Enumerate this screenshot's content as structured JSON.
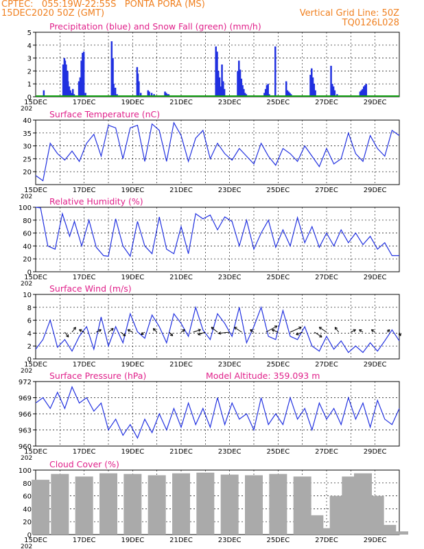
{
  "header": {
    "line1": "CPTEC:   055:19W-22:55S   PONTA PORA (MS)",
    "line2": "15DEC2020 50Z (GMT)",
    "grid_note": "Vertical Grid Line: 50Z",
    "code": "TQ0126L028"
  },
  "colors": {
    "precip": "#2030e0",
    "snow": "#10a010",
    "line": "#2030e0",
    "title": "#e0208a",
    "header": "#f08020",
    "cloud": "#aaaaaa",
    "wind_arrow": "#000000"
  },
  "x_ticks": [
    "15DEC",
    "17DEC",
    "19DEC",
    "21DEC",
    "23DEC",
    "25DEC",
    "27DEC",
    "29DEC"
  ],
  "stub_label": "202",
  "chart_data": [
    {
      "type": "bar",
      "title": "Precipitation (blue) and Snow Fall (green) (mm/h)",
      "ylim": [
        0,
        5
      ],
      "yticks": [
        "0",
        "1",
        "2",
        "3",
        "4",
        "5"
      ],
      "grid": true,
      "x_days": [
        0.3,
        0.4,
        1.1,
        1.15,
        1.18,
        1.22,
        1.28,
        1.3,
        1.35,
        1.4,
        1.45,
        1.5,
        1.55,
        1.75,
        1.8,
        1.85,
        1.9,
        1.95,
        2.02,
        2.1,
        3.1,
        3.15,
        3.18,
        3.25,
        3.32,
        4.15,
        4.18,
        4.22,
        4.3,
        4.4,
        4.6,
        4.65,
        4.75,
        4.85,
        5.3,
        5.35,
        5.4,
        5.45,
        5.5,
        5.6,
        5.8,
        7.4,
        7.45,
        7.5,
        7.55,
        7.6,
        7.65,
        7.7,
        7.75,
        8.3,
        8.35,
        8.4,
        8.45,
        8.5,
        8.55,
        8.6,
        8.65,
        9.4,
        9.45,
        9.5,
        9.55,
        9.6,
        9.85,
        10.3,
        10.35,
        10.4,
        10.45,
        10.5,
        10.55,
        11.3,
        11.35,
        11.4,
        11.45,
        11.5,
        12.15,
        12.2,
        12.25,
        12.3,
        12.4,
        13.35,
        13.4,
        13.45,
        13.5,
        13.55,
        13.6
      ],
      "values": [
        0.5,
        0.1,
        2.5,
        3.0,
        2.8,
        2.5,
        2.0,
        1.2,
        0.8,
        0.5,
        0.3,
        0.6,
        0.2,
        1.2,
        1.5,
        2.8,
        3.4,
        3.5,
        0.3,
        0.1,
        4.3,
        3.0,
        1.0,
        0.7,
        0.2,
        2.3,
        1.8,
        1.2,
        0.3,
        0.1,
        0.5,
        0.4,
        0.3,
        0.2,
        0.4,
        0.3,
        0.2,
        0.2,
        0.1,
        0.1,
        0.1,
        3.9,
        3.5,
        2.0,
        1.5,
        0.8,
        2.5,
        1.2,
        0.6,
        2.0,
        2.8,
        2.1,
        1.4,
        0.9,
        0.6,
        0.3,
        0.2,
        0.3,
        0.6,
        0.9,
        1.0,
        0.2,
        3.9,
        1.2,
        0.5,
        0.4,
        0.3,
        0.2,
        0.1,
        1.7,
        2.2,
        1.5,
        1.0,
        0.5,
        2.4,
        1.0,
        0.8,
        0.5,
        0.2,
        0.4,
        0.5,
        0.6,
        0.8,
        0.9,
        1.0
      ],
      "snow": 0
    },
    {
      "type": "line",
      "title": "Surface Temperature (nC)",
      "ylim": [
        15,
        40
      ],
      "yticks": [
        "20",
        "25",
        "30",
        "35",
        "40"
      ],
      "grid": true,
      "x_days": [
        0,
        0.3,
        0.6,
        0.9,
        1.2,
        1.5,
        1.8,
        2.1,
        2.4,
        2.7,
        3.0,
        3.3,
        3.6,
        3.9,
        4.2,
        4.5,
        4.8,
        5.1,
        5.4,
        5.7,
        6.0,
        6.3,
        6.6,
        6.9,
        7.2,
        7.5,
        7.8,
        8.1,
        8.4,
        8.7,
        9.0,
        9.3,
        9.6,
        9.9,
        10.2,
        10.5,
        10.8,
        11.1,
        11.4,
        11.7,
        12.0,
        12.3,
        12.6,
        12.9,
        13.2,
        13.5,
        13.8,
        14.1,
        14.4,
        14.7,
        15.0
      ],
      "values": [
        18.5,
        16.5,
        31,
        27,
        24.5,
        28,
        24,
        31,
        34.5,
        26,
        38,
        37,
        25,
        37,
        38,
        24,
        38.5,
        36,
        24,
        39,
        34,
        24,
        33,
        36,
        25,
        31,
        27,
        24.5,
        29,
        26,
        23,
        31,
        26,
        22.5,
        29,
        27,
        24,
        30,
        26,
        22,
        29,
        23,
        25,
        35,
        27,
        24,
        34,
        29,
        26,
        36,
        34
      ]
    },
    {
      "type": "line",
      "title": "Relative Humidity (%)",
      "ylim": [
        0,
        100
      ],
      "yticks": [
        "0",
        "20",
        "40",
        "60",
        "80",
        "100"
      ],
      "grid": true,
      "x_days": [
        0,
        0.2,
        0.5,
        0.8,
        1.1,
        1.4,
        1.6,
        1.9,
        2.2,
        2.5,
        2.8,
        3.0,
        3.3,
        3.6,
        3.9,
        4.2,
        4.5,
        4.8,
        5.1,
        5.4,
        5.7,
        6.0,
        6.3,
        6.6,
        6.9,
        7.2,
        7.5,
        7.8,
        8.1,
        8.4,
        8.7,
        9.0,
        9.3,
        9.6,
        9.9,
        10.2,
        10.5,
        10.8,
        11.1,
        11.4,
        11.7,
        12.0,
        12.3,
        12.6,
        12.9,
        13.2,
        13.5,
        13.8,
        14.1,
        14.4,
        14.7,
        15.0
      ],
      "values": [
        100,
        99,
        40,
        35,
        90,
        55,
        78,
        40,
        80,
        38,
        25,
        24,
        82,
        40,
        24,
        78,
        40,
        28,
        85,
        35,
        28,
        70,
        28,
        90,
        82,
        88,
        65,
        85,
        78,
        40,
        80,
        35,
        60,
        80,
        38,
        65,
        40,
        84,
        45,
        70,
        38,
        60,
        40,
        65,
        45,
        60,
        42,
        55,
        35,
        45,
        25,
        25
      ]
    },
    {
      "type": "line",
      "title": "Surface Wind (m/s)",
      "ylim": [
        0,
        10
      ],
      "yticks": [
        "0",
        "2",
        "4",
        "6",
        "8",
        "10"
      ],
      "grid": true,
      "x_days": [
        0,
        0.3,
        0.6,
        0.9,
        1.2,
        1.5,
        1.8,
        2.1,
        2.4,
        2.7,
        3.0,
        3.3,
        3.6,
        3.9,
        4.2,
        4.5,
        4.8,
        5.1,
        5.4,
        5.7,
        6.0,
        6.3,
        6.6,
        6.9,
        7.2,
        7.5,
        7.8,
        8.1,
        8.4,
        8.7,
        9.0,
        9.3,
        9.6,
        9.9,
        10.2,
        10.5,
        10.8,
        11.1,
        11.4,
        11.7,
        12.0,
        12.3,
        12.6,
        12.9,
        13.2,
        13.5,
        13.8,
        14.1,
        14.4,
        14.7,
        15.0
      ],
      "values": [
        1.5,
        3,
        6,
        1.8,
        3,
        1.2,
        3.5,
        5,
        1.5,
        6.5,
        2,
        5,
        2.5,
        7,
        4.2,
        3.2,
        6.8,
        5,
        2.5,
        7,
        5.5,
        3.5,
        8,
        4.5,
        3,
        7,
        5.5,
        3.5,
        8,
        2.5,
        5,
        8,
        3.5,
        3,
        7.5,
        3.5,
        3,
        5,
        2,
        1.2,
        3.5,
        1.5,
        2.8,
        1,
        2,
        1,
        2.5,
        1.2,
        2.8,
        4.5,
        2.8
      ],
      "arrow_days": [
        1.2,
        1.5,
        2.0,
        2.5,
        3.0,
        3.5,
        4.0,
        4.5,
        5.0,
        5.5,
        6.0,
        6.5,
        7.0,
        7.5,
        8.0,
        8.5,
        9.0,
        9.5,
        10.0,
        10.5,
        11.0,
        11.5,
        12.0,
        12.5,
        13.0,
        13.5,
        14.0,
        14.5,
        15.0
      ],
      "arrow_u": [
        0.3,
        0.3,
        -0.4,
        0.4,
        0.4,
        0.4,
        -0.4,
        -0.3,
        -0.3,
        0.3,
        0.3,
        0.6,
        -0.6,
        -0.5,
        -0.9,
        -0.6,
        -0.3,
        0.9,
        -0.5,
        0.9,
        -0.5,
        0.6,
        -0.6,
        -0.3,
        0.4,
        -0.3,
        -0.3,
        0.2,
        0.1
      ],
      "arrow_v": [
        -0.4,
        0.4,
        0.2,
        0.2,
        0.3,
        -0.3,
        0.2,
        -0.2,
        0.3,
        -0.3,
        0.2,
        0.2,
        -0.2,
        0.4,
        -0.1,
        0.4,
        0.2,
        0.5,
        0.2,
        0.4,
        -0.2,
        -0.4,
        0.4,
        0.4,
        0.2,
        0.2,
        0.2,
        0.2,
        -0.3
      ]
    },
    {
      "type": "line",
      "title": "Surface Pressure (hPa)",
      "subtitle": "Model Altitude: 359.093  m",
      "ylim": [
        960,
        972
      ],
      "yticks": [
        "960",
        "963",
        "966",
        "969",
        "972"
      ],
      "grid": true,
      "x_days": [
        0,
        0.3,
        0.6,
        0.9,
        1.2,
        1.5,
        1.8,
        2.1,
        2.4,
        2.7,
        3.0,
        3.3,
        3.6,
        3.9,
        4.2,
        4.5,
        4.8,
        5.1,
        5.4,
        5.7,
        6.0,
        6.3,
        6.6,
        6.9,
        7.2,
        7.5,
        7.8,
        8.1,
        8.4,
        8.7,
        9.0,
        9.3,
        9.6,
        9.9,
        10.2,
        10.5,
        10.8,
        11.1,
        11.4,
        11.7,
        12.0,
        12.3,
        12.6,
        12.9,
        13.2,
        13.5,
        13.8,
        14.1,
        14.4,
        14.7,
        15.0
      ],
      "values": [
        968,
        969,
        967,
        970,
        967,
        971,
        968,
        969,
        966.5,
        968,
        963,
        965,
        962,
        964,
        961.5,
        965,
        962.5,
        966,
        963,
        967,
        963.5,
        968,
        964,
        967,
        963.5,
        969,
        964,
        968,
        965,
        966,
        963,
        969,
        964,
        966,
        964,
        969,
        965,
        967,
        963,
        968,
        965,
        967,
        964,
        969,
        965,
        968,
        963.5,
        968.5,
        965,
        964,
        967
      ]
    },
    {
      "type": "bar",
      "title": "Cloud Cover (%)",
      "ylim": [
        0,
        100
      ],
      "yticks": [
        "0",
        "20",
        "40",
        "60",
        "80",
        "100"
      ],
      "grid": true,
      "x_days": [
        0.2,
        1.0,
        2.0,
        3.0,
        4.0,
        5.0,
        6.0,
        7.0,
        8.0,
        9.0,
        10.0,
        11.0,
        11.5,
        12.0,
        12.5,
        13.0,
        13.5,
        14.0,
        14.5,
        15.0
      ],
      "values": [
        85,
        94,
        90,
        95,
        94,
        92,
        95,
        96,
        93,
        92,
        94,
        90,
        30,
        10,
        60,
        90,
        95,
        60,
        15,
        5
      ]
    }
  ]
}
